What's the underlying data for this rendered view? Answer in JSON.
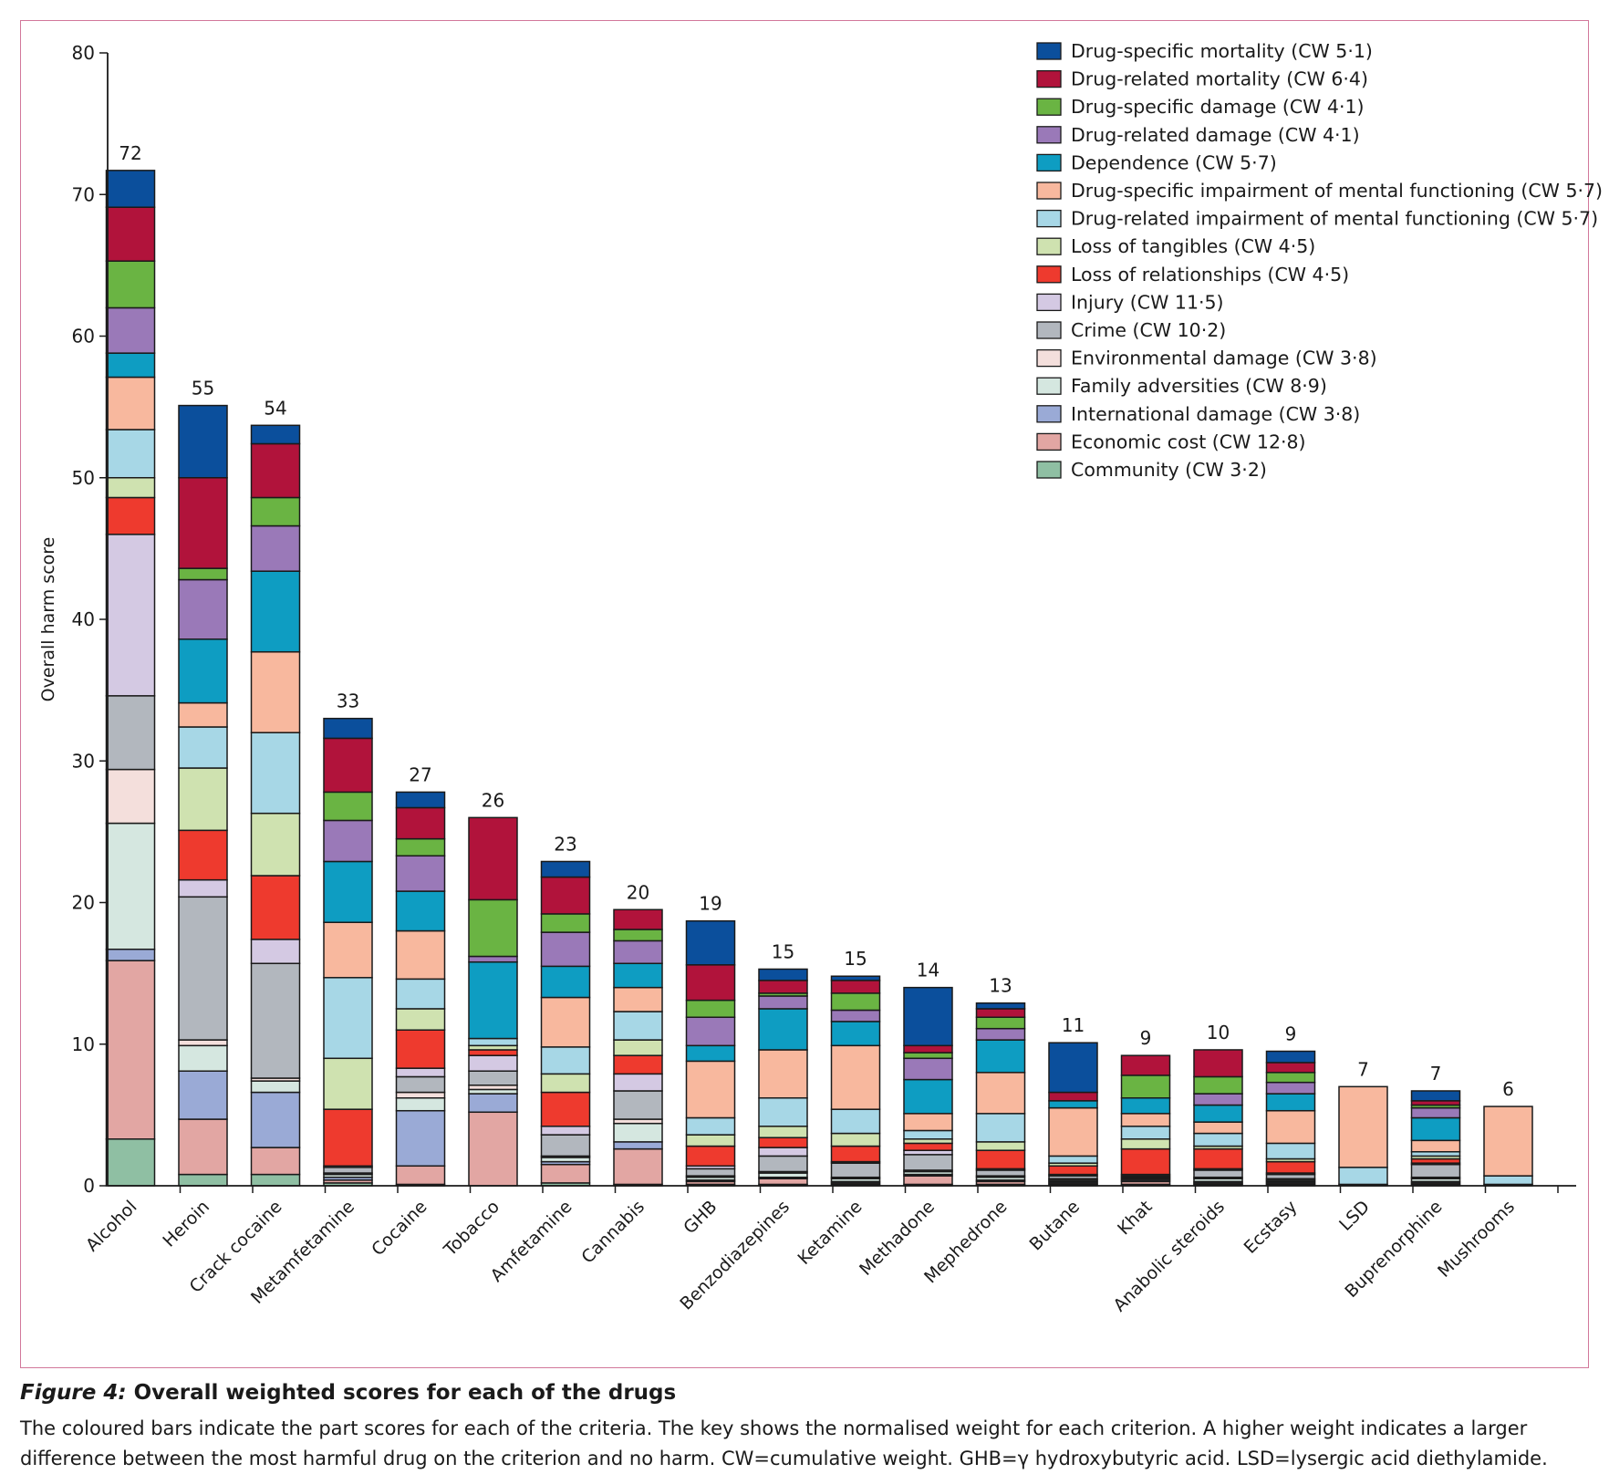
{
  "caption": {
    "figure_label": "Figure 4:",
    "title": "Overall weighted scores for each of the drugs",
    "body": "The coloured bars indicate the part scores for each of the criteria. The key shows the normalised weight for each criterion. A higher weight indicates a larger difference between the most harmful drug on the criterion and no harm. CW=cumulative weight. GHB=γ hydroxybutyric acid. LSD=lysergic acid diethylamide."
  },
  "chart_data": {
    "type": "bar",
    "stacked": true,
    "title": "",
    "xlabel": "",
    "ylabel": "Overall harm score",
    "ylim": [
      0,
      80
    ],
    "yticks": [
      0,
      10,
      20,
      30,
      40,
      50,
      60,
      70,
      80
    ],
    "legend_position": "top-right",
    "categories": [
      "Alcohol",
      "Heroin",
      "Crack cocaine",
      "Metamfetamine",
      "Cocaine",
      "Tobacco",
      "Amfetamine",
      "Cannabis",
      "GHB",
      "Benzodiazepines",
      "Ketamine",
      "Methadone",
      "Mephedrone",
      "Butane",
      "Khat",
      "Anabolic steroids",
      "Ecstasy",
      "LSD",
      "Buprenorphine",
      "Mushrooms"
    ],
    "totals": [
      "72",
      "55",
      "54",
      "33",
      "27",
      "26",
      "23",
      "20",
      "19",
      "15",
      "15",
      "14",
      "13",
      "11",
      "9",
      "10",
      "9",
      "7",
      "7",
      "6"
    ],
    "series": [
      {
        "name": "Community (CW 3·2)",
        "color": "#8fbfa3",
        "values": [
          3.3,
          0.8,
          0.8,
          0.2,
          0.1,
          0.0,
          0.2,
          0.1,
          0.1,
          0.1,
          0.1,
          0.1,
          0.1,
          0.1,
          0.1,
          0.1,
          0.1,
          0.0,
          0.1,
          0.0
        ]
      },
      {
        "name": "Economic cost (CW 12·8)",
        "color": "#e2a6a3",
        "values": [
          12.6,
          3.9,
          1.9,
          0.2,
          1.3,
          5.2,
          1.3,
          2.5,
          0.2,
          0.4,
          0.1,
          0.6,
          0.2,
          0.1,
          0.2,
          0.1,
          0.1,
          0.0,
          0.1,
          0.0
        ]
      },
      {
        "name": "International damage (CW 3·8)",
        "color": "#9aaad6",
        "values": [
          0.8,
          3.4,
          3.9,
          0.2,
          3.9,
          1.3,
          0.2,
          0.5,
          0.1,
          0.1,
          0.1,
          0.1,
          0.1,
          0.1,
          0.1,
          0.1,
          0.1,
          0.0,
          0.1,
          0.0
        ]
      },
      {
        "name": "Family adversities (CW 8·9)",
        "color": "#d5e7e0",
        "values": [
          8.9,
          1.8,
          0.8,
          0.2,
          0.9,
          0.3,
          0.3,
          1.3,
          0.2,
          0.3,
          0.2,
          0.2,
          0.2,
          0.1,
          0.1,
          0.2,
          0.1,
          0.0,
          0.2,
          0.0
        ]
      },
      {
        "name": "Environmental damage (CW 3·8)",
        "color": "#f4dfdc",
        "values": [
          3.8,
          0.4,
          0.2,
          0.1,
          0.4,
          0.3,
          0.1,
          0.3,
          0.1,
          0.1,
          0.1,
          0.1,
          0.1,
          0.1,
          0.1,
          0.1,
          0.1,
          0.0,
          0.1,
          0.0
        ]
      },
      {
        "name": "Crime (CW 10·2)",
        "color": "#b2b7be",
        "values": [
          5.2,
          10.1,
          8.1,
          0.4,
          1.1,
          1.0,
          1.5,
          2.0,
          0.5,
          1.1,
          1.0,
          1.1,
          0.4,
          0.2,
          0.1,
          0.5,
          0.3,
          0.1,
          0.9,
          0.1
        ]
      },
      {
        "name": "Injury (CW 11·5)",
        "color": "#d4c9e3",
        "values": [
          11.4,
          1.2,
          1.7,
          0.1,
          0.6,
          1.1,
          0.6,
          1.2,
          0.2,
          0.6,
          0.1,
          0.3,
          0.1,
          0.1,
          0.1,
          0.1,
          0.1,
          0.0,
          0.1,
          0.0
        ]
      },
      {
        "name": "Loss of relationships (CW 4·5)",
        "color": "#ee3a2e",
        "values": [
          2.6,
          3.5,
          4.5,
          4.0,
          2.7,
          0.4,
          2.4,
          1.3,
          1.4,
          0.7,
          1.1,
          0.5,
          1.3,
          0.6,
          1.8,
          1.4,
          0.8,
          0.0,
          0.3,
          0.0
        ]
      },
      {
        "name": "Loss of tangibles (CW 4·5)",
        "color": "#cfe2b0",
        "values": [
          1.4,
          4.4,
          4.4,
          3.6,
          1.5,
          0.3,
          1.3,
          1.1,
          0.8,
          0.8,
          0.9,
          0.3,
          0.6,
          0.2,
          0.7,
          0.2,
          0.2,
          0.0,
          0.2,
          0.0
        ]
      },
      {
        "name": "Drug-related impairment of mental functioning (CW 5·7)",
        "color": "#a7d7e6",
        "values": [
          3.4,
          2.9,
          5.7,
          5.7,
          2.1,
          0.5,
          1.9,
          2.0,
          1.2,
          2.0,
          1.7,
          0.6,
          2.0,
          0.5,
          0.9,
          0.9,
          1.1,
          1.2,
          0.3,
          0.6
        ]
      },
      {
        "name": "Drug-specific impairment of mental functioning (CW 5·7)",
        "color": "#f8b89e",
        "values": [
          3.7,
          1.7,
          5.7,
          3.9,
          3.4,
          0.0,
          3.5,
          1.7,
          4.0,
          3.4,
          4.5,
          1.2,
          2.9,
          3.4,
          0.9,
          0.8,
          2.3,
          5.7,
          0.8,
          4.9
        ]
      },
      {
        "name": "Dependence (CW 5·7)",
        "color": "#0e9dc2",
        "values": [
          1.7,
          4.5,
          5.7,
          4.3,
          2.8,
          5.4,
          2.2,
          1.7,
          1.1,
          2.9,
          1.7,
          2.4,
          2.3,
          0.5,
          1.1,
          1.2,
          1.2,
          0.0,
          1.6,
          0.0
        ]
      },
      {
        "name": "Drug-related damage (CW 4·1)",
        "color": "#9a79b8",
        "values": [
          3.2,
          4.2,
          3.2,
          2.9,
          2.5,
          0.4,
          2.4,
          1.6,
          2.0,
          0.9,
          0.8,
          1.5,
          0.8,
          0.0,
          0.0,
          0.8,
          0.8,
          0.0,
          0.7,
          0.0
        ]
      },
      {
        "name": "Drug-specific damage (CW 4·1)",
        "color": "#6ab443",
        "values": [
          3.3,
          0.8,
          2.0,
          2.0,
          1.2,
          4.0,
          1.3,
          0.8,
          1.2,
          0.2,
          1.2,
          0.4,
          0.8,
          0.0,
          1.6,
          1.2,
          0.7,
          0.0,
          0.2,
          0.0
        ]
      },
      {
        "name": "Drug-related mortality (CW 6·4)",
        "color": "#b1133b",
        "values": [
          3.8,
          6.4,
          3.8,
          3.8,
          2.2,
          5.8,
          2.6,
          1.4,
          2.5,
          0.9,
          0.9,
          0.5,
          0.6,
          0.6,
          1.4,
          1.9,
          0.7,
          0.0,
          0.3,
          0.0
        ]
      },
      {
        "name": "Drug-specific mortality (CW 5·1)",
        "color": "#0b4f9c",
        "values": [
          2.6,
          5.1,
          1.3,
          1.4,
          1.1,
          0.0,
          1.1,
          0.0,
          3.1,
          0.8,
          0.3,
          4.1,
          0.4,
          3.5,
          0.0,
          0.0,
          0.8,
          0.0,
          0.7,
          0.0
        ]
      }
    ]
  }
}
